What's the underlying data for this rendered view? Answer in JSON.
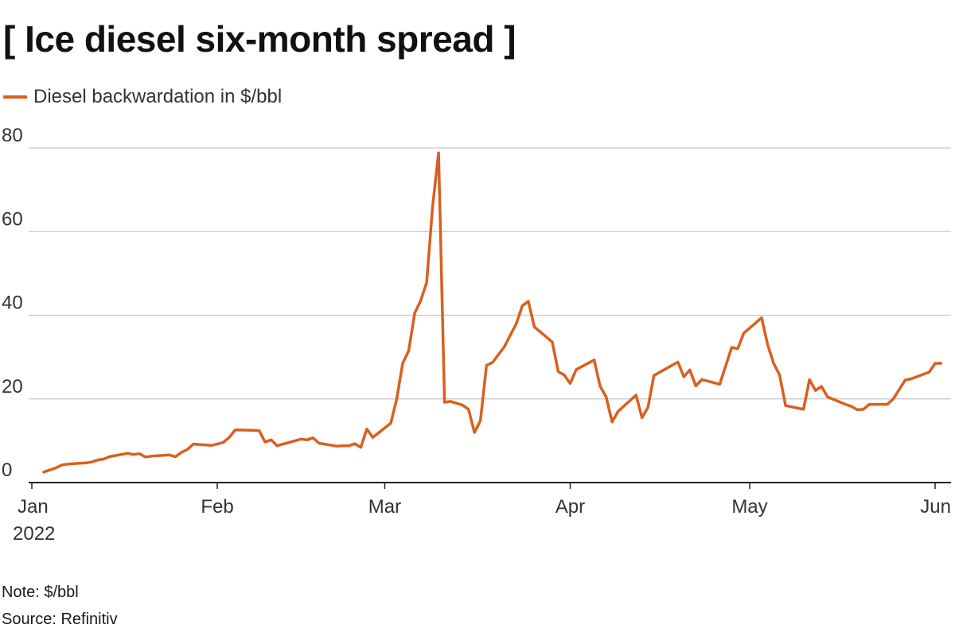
{
  "title": "[ Ice diesel six-month spread ]",
  "legend": {
    "label": "Diesel backwardation in $/bbl"
  },
  "colors": {
    "line": "#d9601f",
    "grid": "#c8c8c8",
    "axis": "#222222"
  },
  "note": "Note: $/bbl",
  "source": "Source: Refinitiv",
  "chart_data": {
    "type": "line",
    "title": "[ Ice diesel six-month spread ]",
    "xlabel": "",
    "ylabel": "",
    "ylim": [
      0,
      80
    ],
    "grid": true,
    "legend_position": "top-left",
    "y_ticks": [
      0,
      20,
      40,
      60,
      80
    ],
    "x_ticks": [
      {
        "date": "2022-01-01",
        "label": "Jan",
        "sublabel": "2022"
      },
      {
        "date": "2022-02-01",
        "label": "Feb"
      },
      {
        "date": "2022-03-01",
        "label": "Mar"
      },
      {
        "date": "2022-04-01",
        "label": "Apr"
      },
      {
        "date": "2022-05-01",
        "label": "May"
      },
      {
        "date": "2022-06-01",
        "label": "Jun"
      }
    ],
    "series": [
      {
        "name": "Diesel backwardation in $/bbl",
        "points": [
          [
            "2022-01-03",
            2.5
          ],
          [
            "2022-01-04",
            3.0
          ],
          [
            "2022-01-05",
            3.5
          ],
          [
            "2022-01-06",
            4.2
          ],
          [
            "2022-01-07",
            4.4
          ],
          [
            "2022-01-10",
            4.7
          ],
          [
            "2022-01-11",
            4.9
          ],
          [
            "2022-01-12",
            5.4
          ],
          [
            "2022-01-13",
            5.6
          ],
          [
            "2022-01-14",
            6.2
          ],
          [
            "2022-01-17",
            7.0
          ],
          [
            "2022-01-18",
            6.7
          ],
          [
            "2022-01-19",
            6.9
          ],
          [
            "2022-01-20",
            6.1
          ],
          [
            "2022-01-21",
            6.3
          ],
          [
            "2022-01-24",
            6.6
          ],
          [
            "2022-01-25",
            6.2
          ],
          [
            "2022-01-26",
            7.2
          ],
          [
            "2022-01-27",
            7.9
          ],
          [
            "2022-01-28",
            9.2
          ],
          [
            "2022-01-31",
            8.9
          ],
          [
            "2022-02-01",
            9.2
          ],
          [
            "2022-02-02",
            9.6
          ],
          [
            "2022-02-03",
            10.8
          ],
          [
            "2022-02-04",
            12.6
          ],
          [
            "2022-02-07",
            12.5
          ],
          [
            "2022-02-08",
            12.4
          ],
          [
            "2022-02-09",
            9.7
          ],
          [
            "2022-02-10",
            10.2
          ],
          [
            "2022-02-11",
            8.8
          ],
          [
            "2022-02-14",
            10.0
          ],
          [
            "2022-02-15",
            10.4
          ],
          [
            "2022-02-16",
            10.2
          ],
          [
            "2022-02-17",
            10.7
          ],
          [
            "2022-02-18",
            9.4
          ],
          [
            "2022-02-21",
            8.7
          ],
          [
            "2022-02-22",
            8.8
          ],
          [
            "2022-02-23",
            8.8
          ],
          [
            "2022-02-24",
            9.3
          ],
          [
            "2022-02-25",
            8.4
          ],
          [
            "2022-02-26",
            12.8
          ],
          [
            "2022-02-27",
            10.8
          ],
          [
            "2022-03-02",
            14.2
          ],
          [
            "2022-03-03",
            20.0
          ],
          [
            "2022-03-04",
            28.5
          ],
          [
            "2022-03-05",
            31.5
          ],
          [
            "2022-03-06",
            40.5
          ],
          [
            "2022-03-07",
            43.5
          ],
          [
            "2022-03-08",
            47.8
          ],
          [
            "2022-03-09",
            66.0
          ],
          [
            "2022-03-10",
            78.8
          ],
          [
            "2022-03-11",
            19.2
          ],
          [
            "2022-03-12",
            19.4
          ],
          [
            "2022-03-14",
            18.5
          ],
          [
            "2022-03-15",
            17.5
          ],
          [
            "2022-03-16",
            12.0
          ],
          [
            "2022-03-17",
            14.8
          ],
          [
            "2022-03-18",
            28.0
          ],
          [
            "2022-03-19",
            28.7
          ],
          [
            "2022-03-21",
            32.5
          ],
          [
            "2022-03-23",
            38.0
          ],
          [
            "2022-03-24",
            42.3
          ],
          [
            "2022-03-25",
            43.3
          ],
          [
            "2022-03-26",
            37.2
          ],
          [
            "2022-03-29",
            33.6
          ],
          [
            "2022-03-30",
            26.5
          ],
          [
            "2022-03-31",
            25.7
          ],
          [
            "2022-04-01",
            23.7
          ],
          [
            "2022-04-02",
            27.0
          ],
          [
            "2022-04-05",
            29.3
          ],
          [
            "2022-04-06",
            23.0
          ],
          [
            "2022-04-07",
            20.5
          ],
          [
            "2022-04-08",
            14.5
          ],
          [
            "2022-04-09",
            17.0
          ],
          [
            "2022-04-12",
            20.9
          ],
          [
            "2022-04-13",
            15.5
          ],
          [
            "2022-04-14",
            18.0
          ],
          [
            "2022-04-15",
            25.6
          ],
          [
            "2022-04-19",
            28.8
          ],
          [
            "2022-04-20",
            25.3
          ],
          [
            "2022-04-21",
            26.9
          ],
          [
            "2022-04-22",
            23.1
          ],
          [
            "2022-04-23",
            24.6
          ],
          [
            "2022-04-26",
            23.5
          ],
          [
            "2022-04-28",
            32.3
          ],
          [
            "2022-04-29",
            32.0
          ],
          [
            "2022-04-30",
            35.7
          ],
          [
            "2022-05-03",
            39.4
          ],
          [
            "2022-05-04",
            33.0
          ],
          [
            "2022-05-05",
            28.5
          ],
          [
            "2022-05-06",
            25.7
          ],
          [
            "2022-05-07",
            18.4
          ],
          [
            "2022-05-10",
            17.5
          ],
          [
            "2022-05-11",
            24.6
          ],
          [
            "2022-05-12",
            22.0
          ],
          [
            "2022-05-13",
            23.0
          ],
          [
            "2022-05-14",
            20.5
          ],
          [
            "2022-05-17",
            18.7
          ],
          [
            "2022-05-18",
            18.2
          ],
          [
            "2022-05-19",
            17.4
          ],
          [
            "2022-05-20",
            17.5
          ],
          [
            "2022-05-21",
            18.7
          ],
          [
            "2022-05-24",
            18.7
          ],
          [
            "2022-05-25",
            20.0
          ],
          [
            "2022-05-27",
            24.5
          ],
          [
            "2022-05-28",
            24.8
          ],
          [
            "2022-05-31",
            26.4
          ],
          [
            "2022-06-01",
            28.5
          ],
          [
            "2022-06-02",
            28.5
          ]
        ]
      }
    ]
  }
}
